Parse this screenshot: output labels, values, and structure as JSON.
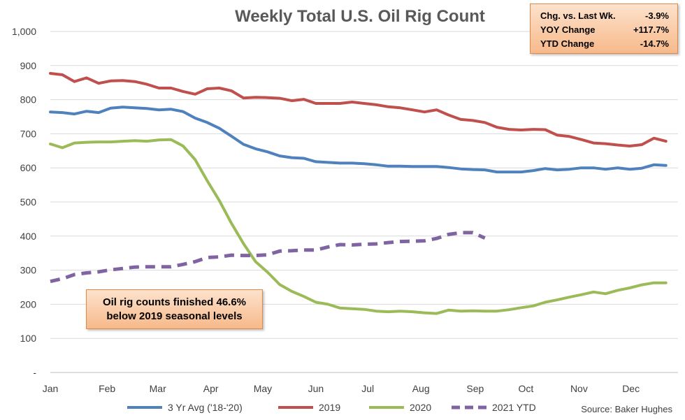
{
  "chart_data": {
    "type": "line",
    "title": "Weekly Total U.S. Oil Rig Count",
    "source": "Source: Baker Hughes",
    "ylim": [
      0,
      1000
    ],
    "y_ticks": [
      "-",
      "100",
      "200",
      "300",
      "400",
      "500",
      "600",
      "700",
      "800",
      "900",
      "1,000"
    ],
    "x_range": [
      1,
      53
    ],
    "x_ticks": [
      {
        "label": "Jan",
        "week": 1
      },
      {
        "label": "Feb",
        "week": 5.7
      },
      {
        "label": "Mar",
        "week": 9.9
      },
      {
        "label": "Apr",
        "week": 14.3
      },
      {
        "label": "May",
        "week": 18.6
      },
      {
        "label": "Jun",
        "week": 23.0
      },
      {
        "label": "Jul",
        "week": 27.3
      },
      {
        "label": "Aug",
        "week": 31.7
      },
      {
        "label": "Sep",
        "week": 36.2
      },
      {
        "label": "Oct",
        "week": 40.4
      },
      {
        "label": "Nov",
        "week": 44.8
      },
      {
        "label": "Dec",
        "week": 49.1
      }
    ],
    "grid": true,
    "legend_position": "bottom",
    "series": [
      {
        "name": "3 Yr Avg ('18-'20)",
        "color": "#4f81bd",
        "dash": false,
        "values": [
          764,
          762,
          758,
          766,
          762,
          775,
          778,
          776,
          774,
          770,
          772,
          765,
          746,
          733,
          716,
          693,
          669,
          656,
          647,
          635,
          630,
          628,
          618,
          616,
          614,
          614,
          612,
          609,
          605,
          605,
          604,
          604,
          604,
          601,
          597,
          595,
          594,
          588,
          588,
          588,
          592,
          598,
          594,
          596,
          600,
          600,
          596,
          600,
          596,
          599,
          609,
          607
        ]
      },
      {
        "name": "2019",
        "color": "#c0504d",
        "dash": false,
        "values": [
          877,
          873,
          853,
          864,
          848,
          855,
          856,
          853,
          845,
          834,
          834,
          824,
          816,
          832,
          834,
          826,
          805,
          807,
          806,
          804,
          797,
          801,
          789,
          789,
          789,
          793,
          789,
          785,
          779,
          776,
          770,
          764,
          770,
          755,
          742,
          739,
          733,
          719,
          713,
          711,
          713,
          712,
          696,
          692,
          683,
          673,
          671,
          667,
          664,
          668,
          687,
          678
        ]
      },
      {
        "name": "2020",
        "color": "#9bbb59",
        "dash": false,
        "values": [
          670,
          659,
          673,
          675,
          676,
          676,
          678,
          680,
          678,
          682,
          683,
          664,
          624,
          562,
          504,
          438,
          378,
          325,
          294,
          258,
          238,
          223,
          206,
          200,
          189,
          187,
          185,
          180,
          178,
          180,
          178,
          175,
          173,
          183,
          180,
          181,
          180,
          180,
          184,
          190,
          195,
          206,
          213,
          221,
          228,
          236,
          231,
          241,
          248,
          257,
          263,
          263
        ]
      },
      {
        "name": "2021 YTD",
        "color": "#8064a2",
        "dash": true,
        "values": [
          267,
          275,
          287,
          292,
          295,
          301,
          305,
          309,
          310,
          310,
          310,
          317,
          325,
          337,
          339,
          344,
          343,
          343,
          345,
          356,
          357,
          359,
          359,
          368,
          375,
          374,
          376,
          377,
          381,
          384,
          385,
          386,
          393,
          405,
          410,
          410,
          394
        ]
      }
    ]
  },
  "stats_box": {
    "rows": [
      {
        "label": "Chg. vs. Last Wk.",
        "value": "-3.9%"
      },
      {
        "label": "YOY Change",
        "value": "+117.7%"
      },
      {
        "label": "YTD Change",
        "value": "-14.7%"
      }
    ]
  },
  "annotation": {
    "line1": "Oil rig counts finished 46.6%",
    "line2": "below 2019 seasonal levels"
  }
}
